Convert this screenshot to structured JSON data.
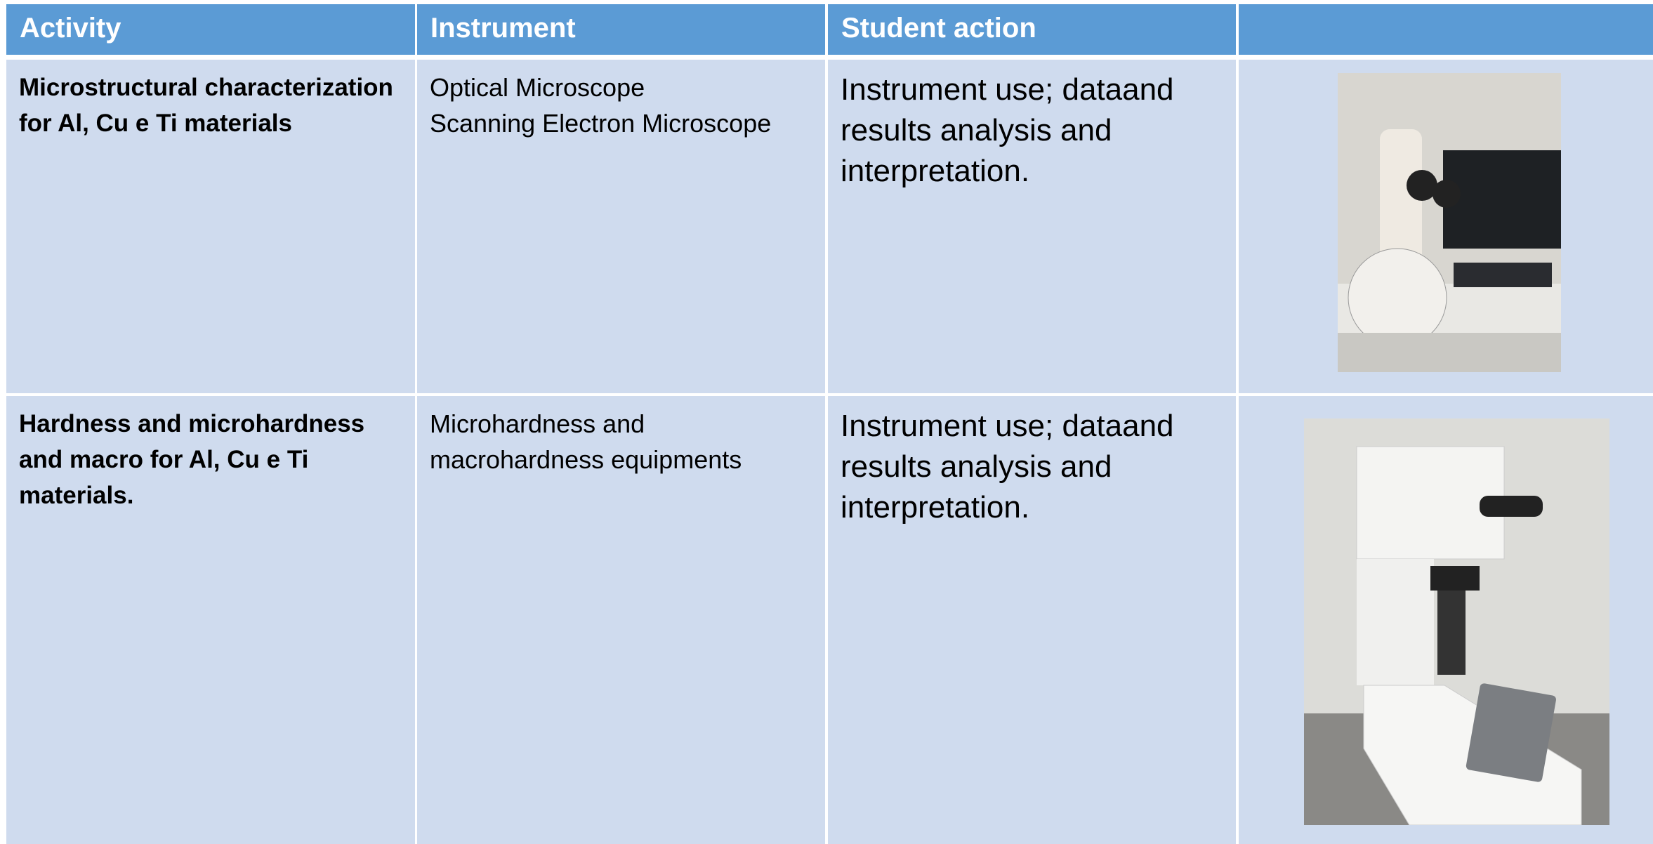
{
  "table": {
    "header": [
      "Activity",
      "Instrument",
      "Student action",
      ""
    ],
    "rows": [
      {
        "activity": "Microstructural characterization for Al, Cu e Ti materials",
        "instrument": [
          "Optical Microscope",
          "Scanning Electron Microscope"
        ],
        "action": "Instrument use; dataand results analysis and interpretation."
      },
      {
        "activity": "Hardness and microhardness and macro for Al, Cu e Ti materials.",
        "instrument": [
          "Microhardness and macrohardness equipments"
        ],
        "action": "Instrument use; dataand results analysis and interpretation."
      }
    ]
  }
}
